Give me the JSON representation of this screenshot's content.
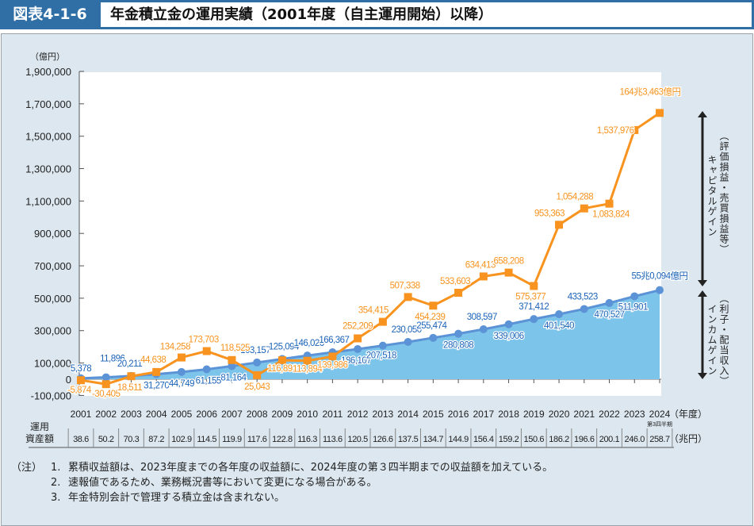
{
  "header": {
    "figure_number": "図表4-1-6",
    "title": "年金積立金の運用実績（2001年度（自主運用開始）以降）"
  },
  "chart_data": {
    "type": "line",
    "ylabel": "（億円）",
    "ylim": [
      -100000,
      1900000
    ],
    "yticks": [
      1900000,
      1700000,
      1500000,
      1300000,
      1100000,
      900000,
      700000,
      500000,
      300000,
      100000,
      0,
      -100000
    ],
    "ytick_labels": [
      "1,900,000",
      "1,700,000",
      "1,500,000",
      "1,300,000",
      "1,100,000",
      "900,000",
      "700,000",
      "500,000",
      "300,000",
      "100,000",
      "0",
      "-100,000"
    ],
    "xlabel": "（年度）",
    "categories": [
      "2001",
      "2002",
      "2003",
      "2004",
      "2005",
      "2006",
      "2007",
      "2008",
      "2009",
      "2010",
      "2011",
      "2012",
      "2013",
      "2014",
      "2015",
      "2016",
      "2017",
      "2018",
      "2019",
      "2020",
      "2021",
      "2022",
      "2023",
      "2024"
    ],
    "x_note": "第3四半期",
    "series": [
      {
        "kind": "capital-gain-total",
        "color": "#f7931e",
        "marker": "square",
        "values": [
          -5874,
          -30405,
          18511,
          44638,
          134258,
          173703,
          118525,
          25043,
          116893,
          113894,
          139986,
          252209,
          354415,
          507338,
          454239,
          533603,
          634413,
          658208,
          575377,
          953363,
          1054288,
          1083824,
          1537976,
          1643463
        ],
        "labels": [
          "-5,874",
          "-30,405",
          "18,511",
          "44,638",
          "134,258",
          "173,703",
          "118,525",
          "25,043",
          "116,893",
          "113,894",
          "139,986",
          "252,209",
          "354,415",
          "507,338",
          "454,239",
          "533,603",
          "634,413",
          "658,208",
          "575,377",
          "953,363",
          "1,054,288",
          "1,083,824",
          "1,537,976",
          "164兆3,463億円"
        ]
      },
      {
        "kind": "income-gain-area",
        "color": "#5b93d6",
        "fill": "#7cc4ea",
        "marker": "circle",
        "values": [
          5378,
          11896,
          20211,
          31270,
          44749,
          61155,
          81164,
          103157,
          125094,
          146026,
          166367,
          186107,
          207518,
          230050,
          255474,
          280808,
          308597,
          339006,
          371412,
          401540,
          433523,
          470527,
          511901,
          550094
        ],
        "labels": [
          "5,378",
          "11,896",
          "20,211",
          "31,270",
          "44,749",
          "61,155",
          "81,164",
          "103,157",
          "125,094",
          "146,026",
          "166,367",
          "186,107",
          "207,518",
          "230,050",
          "255,474",
          "280,808",
          "308,597",
          "339,006",
          "371,412",
          "401,540",
          "433,523",
          "470,527",
          "511,901",
          "55兆0,094億円"
        ]
      }
    ],
    "bracket_labels": {
      "capital": {
        "paren": "（評価損益・売買損益等）",
        "name": "キャピタルゲイン"
      },
      "income": {
        "paren": "（利子・配当収入）",
        "name": "インカムゲイン"
      }
    },
    "assets": {
      "row_label_1": "運用",
      "row_label_2": "資産額",
      "unit": "（兆円）",
      "values": [
        "38.6",
        "50.2",
        "70.3",
        "87.2",
        "102.9",
        "114.5",
        "119.9",
        "117.6",
        "122.8",
        "116.3",
        "113.6",
        "120.5",
        "126.6",
        "137.5",
        "134.7",
        "144.9",
        "156.4",
        "159.2",
        "150.6",
        "186.2",
        "196.6",
        "200.1",
        "246.0",
        "258.7"
      ]
    },
    "grid": false,
    "label_color_capital": "#f7931e",
    "label_color_income": "#1b63b8"
  },
  "notes": {
    "label": "（注）",
    "items": [
      {
        "n": "1.",
        "text": "累積収益額は、2023年度までの各年度の収益額に、2024年度の第３四半期までの収益額を加えている。"
      },
      {
        "n": "2.",
        "text": "速報値であるため、業務概況書等において変更になる場合がある。"
      },
      {
        "n": "3.",
        "text": "年金特別会計で管理する積立金は含まれない。"
      }
    ]
  }
}
